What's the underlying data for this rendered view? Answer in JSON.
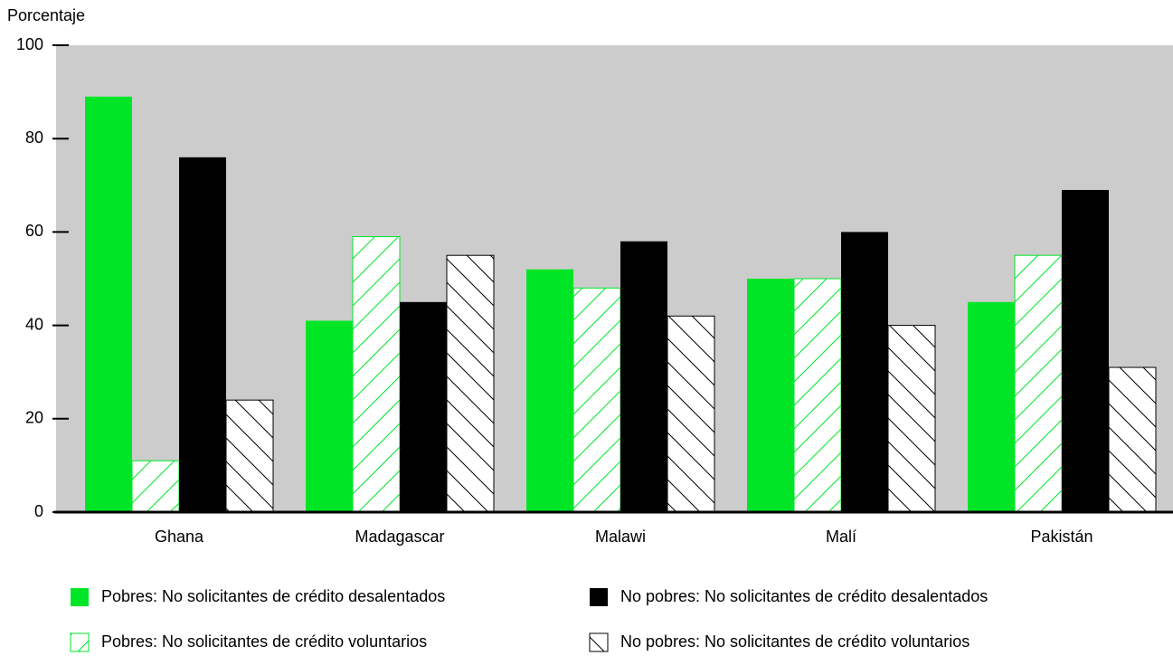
{
  "chart_data": {
    "type": "bar",
    "y_label": "Porcentaje",
    "categories": [
      "Ghana",
      "Madagascar",
      "Malawi",
      "Malí",
      "Pakistán"
    ],
    "series": [
      {
        "name": "Pobres: No solicitantes de crédito desalentados",
        "color": "#00e627",
        "fill": "solid",
        "values": [
          89,
          41,
          52,
          50,
          45
        ]
      },
      {
        "name": "Pobres: No solicitantes de crédito voluntarios",
        "color": "#00e627",
        "fill": "hatch-forward",
        "values": [
          11,
          59,
          48,
          50,
          55
        ]
      },
      {
        "name": "No pobres: No solicitantes de crédito desalentados",
        "color": "#000000",
        "fill": "solid",
        "values": [
          76,
          45,
          58,
          60,
          69
        ]
      },
      {
        "name": "No pobres: No solicitantes de crédito voluntarios",
        "color": "#000000",
        "fill": "hatch-backward",
        "values": [
          24,
          55,
          42,
          40,
          31
        ]
      }
    ],
    "ylim": [
      0,
      100
    ],
    "yticks": [
      0,
      20,
      40,
      60,
      80,
      100
    ],
    "plot_background": "#cccccc"
  }
}
